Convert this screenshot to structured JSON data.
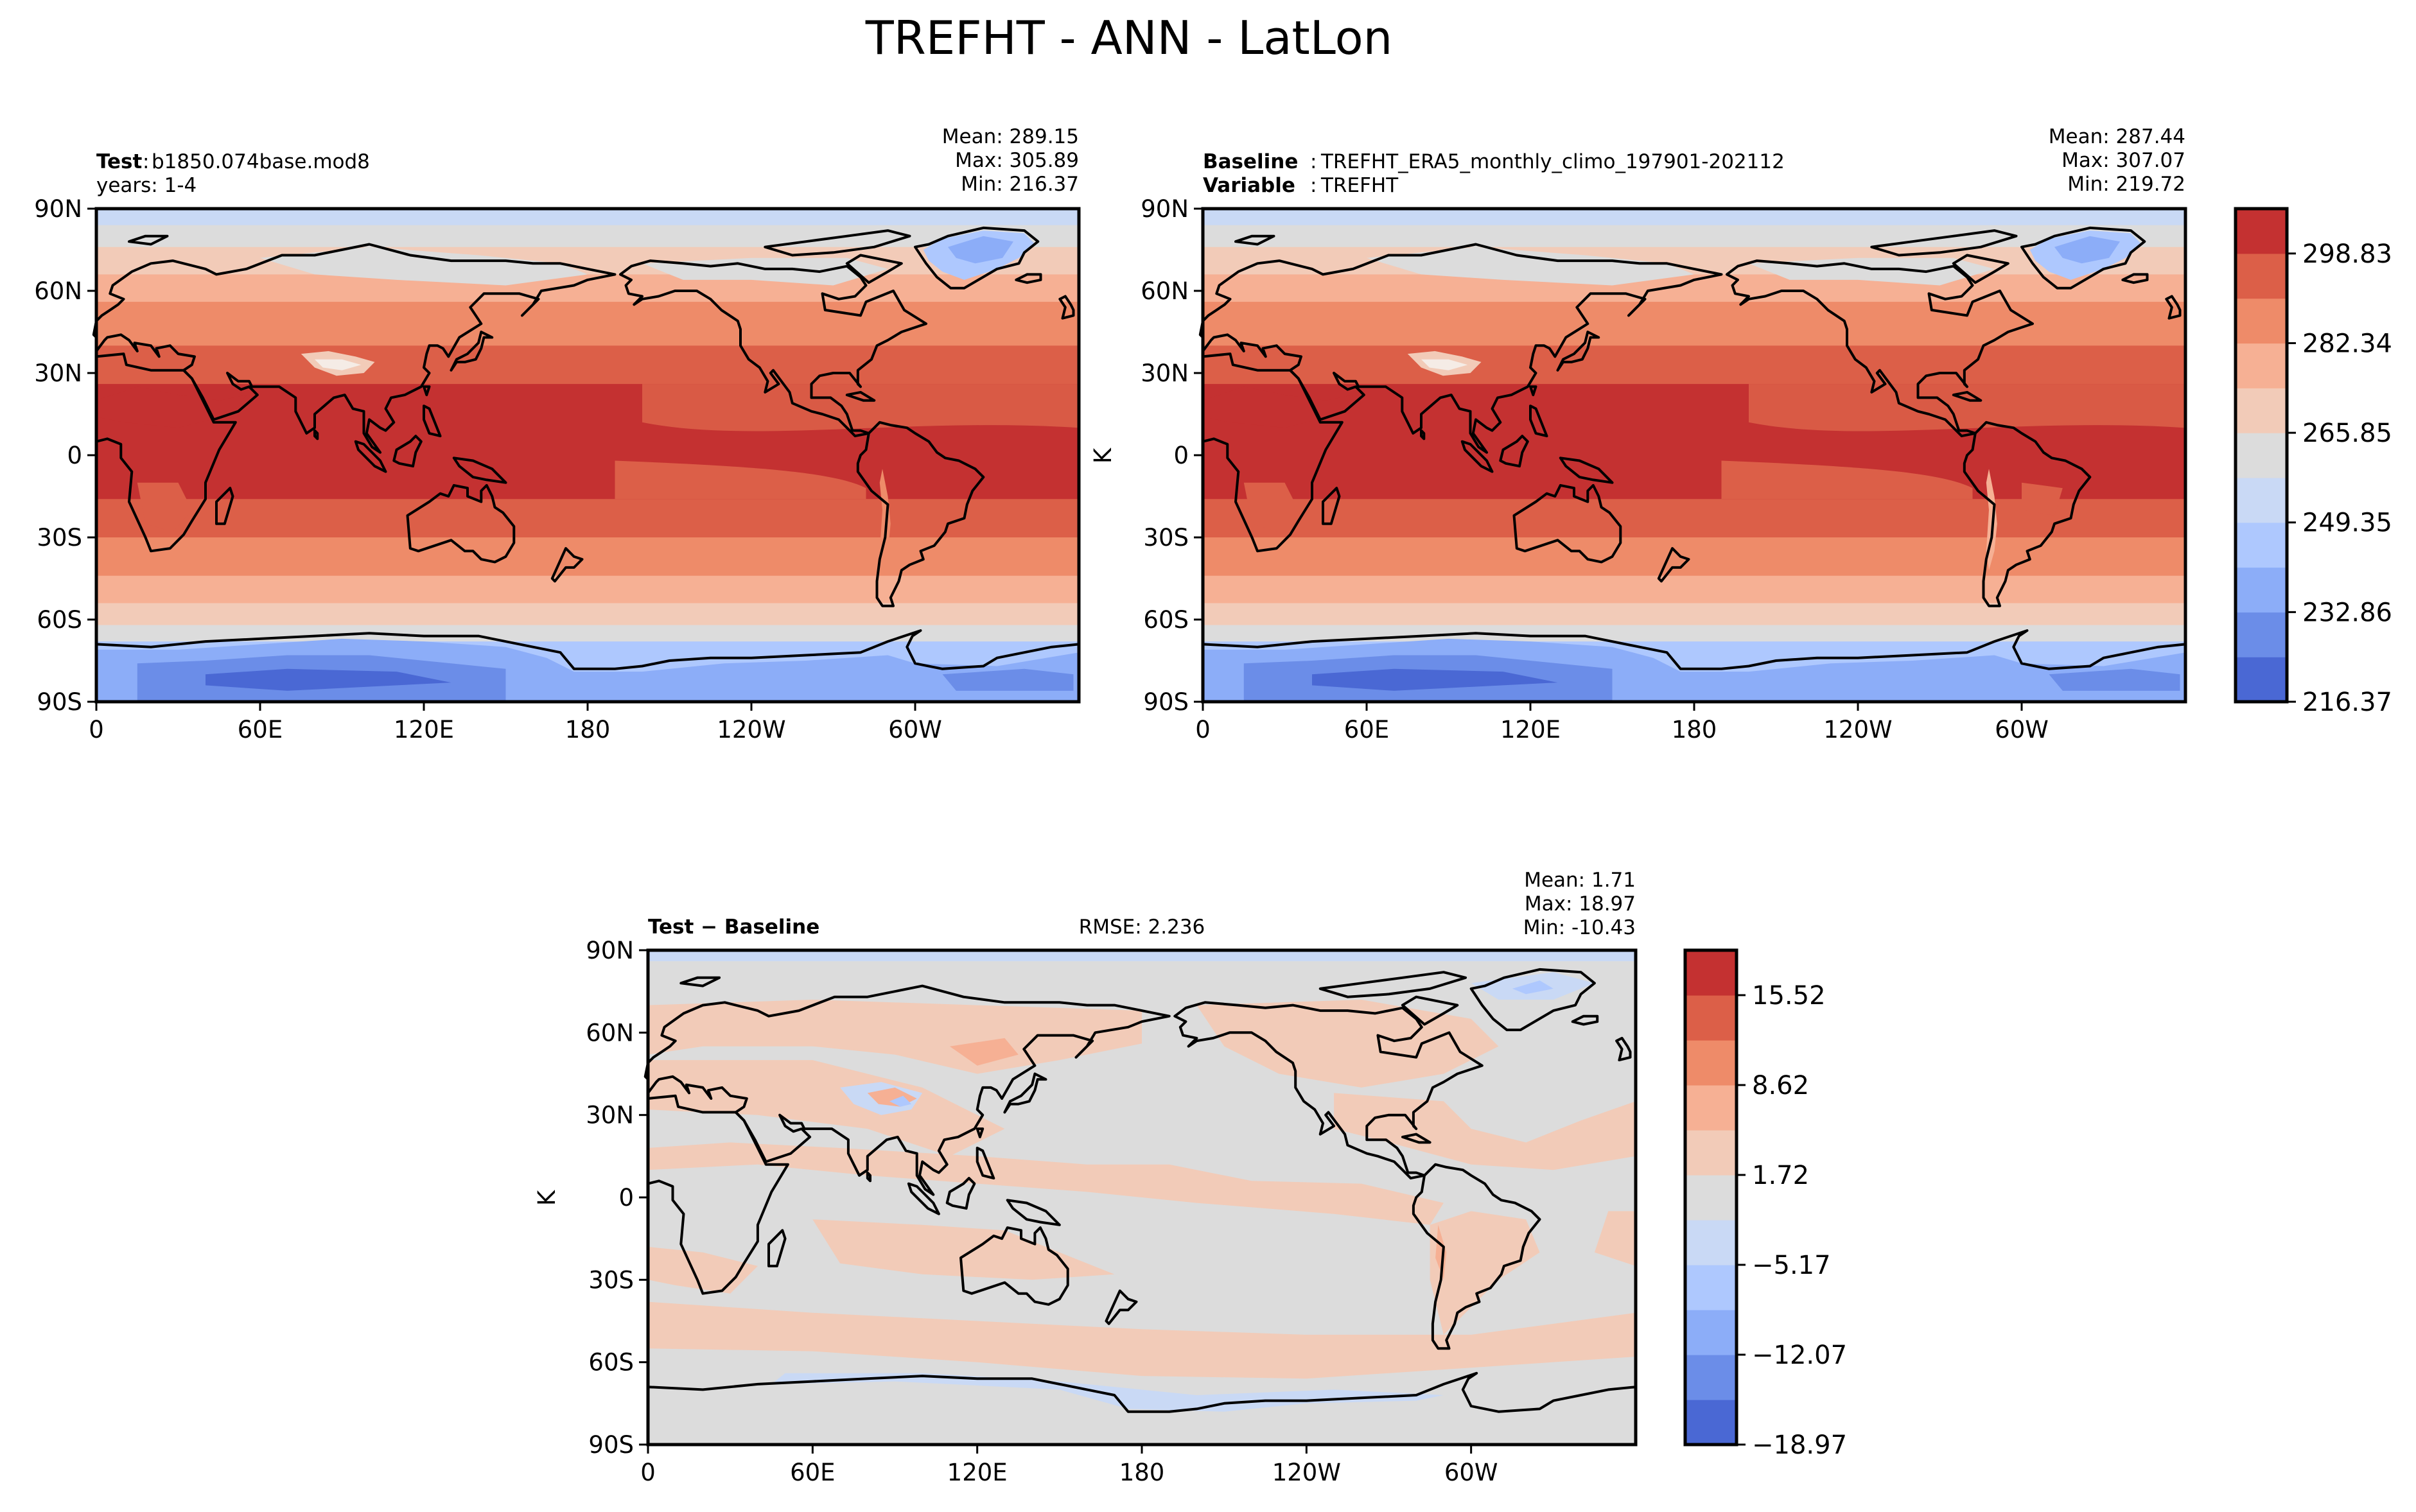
{
  "figure_title": "TREFHT - ANN - LatLon",
  "colors": {
    "main_levels": [
      "#4a68d4",
      "#6b8de8",
      "#8cadf8",
      "#aec8fe",
      "#c9d9f5",
      "#dcdcdc",
      "#f2cbb8",
      "#f6b094",
      "#ee8b69",
      "#dc5f48",
      "#c43131"
    ],
    "diff_levels": [
      "#4a68d4",
      "#6b8de8",
      "#8cadf8",
      "#aec8fe",
      "#c9d9f5",
      "#dcdcdc",
      "#f2cbb8",
      "#f6b094",
      "#ee8b69",
      "#dc5f48",
      "#c43131"
    ]
  },
  "chart_data": [
    {
      "type": "heatmap",
      "panel": "test",
      "label_bold": "Test",
      "label_text": "b1850.074base.mod8",
      "label_line2": "years: 1-4",
      "stats": [
        "Mean: 289.15",
        "Max: 305.89",
        "Min: 216.37"
      ],
      "mean": 289.15,
      "max": 305.89,
      "min": 216.37,
      "x_ticks": [
        "0",
        "60E",
        "120E",
        "180",
        "120W",
        "60W"
      ],
      "y_ticks": [
        "90N",
        "60N",
        "30N",
        "0",
        "30S",
        "60S",
        "90S"
      ],
      "xlim": [
        0,
        360
      ],
      "ylim": [
        -90,
        90
      ]
    },
    {
      "type": "heatmap",
      "panel": "baseline",
      "label_bold": "Baseline",
      "label_text": "TREFHT_ERA5_monthly_climo_197901-202112",
      "label_bold2": "Variable",
      "label_text2": "TREFHT",
      "stats": [
        "Mean: 287.44",
        "Max: 307.07",
        "Min: 219.72"
      ],
      "mean": 287.44,
      "max": 307.07,
      "min": 219.72,
      "ylabel": "K",
      "x_ticks": [
        "0",
        "60E",
        "120E",
        "180",
        "120W",
        "60W"
      ],
      "y_ticks": [
        "90N",
        "60N",
        "30N",
        "0",
        "30S",
        "60S",
        "90S"
      ],
      "xlim": [
        0,
        360
      ],
      "ylim": [
        -90,
        90
      ],
      "colorbar_ticks": [
        "298.83",
        "282.34",
        "265.85",
        "249.35",
        "232.86",
        "216.37"
      ]
    },
    {
      "type": "heatmap",
      "panel": "difference",
      "label_bold": "Test − Baseline",
      "rmse": "RMSE: 2.236",
      "stats": [
        "Mean:  1.71",
        "Max: 18.97",
        "Min: -10.43"
      ],
      "mean": 1.71,
      "max": 18.97,
      "min": -10.43,
      "ylabel": "K",
      "x_ticks": [
        "0",
        "60E",
        "120E",
        "180",
        "120W",
        "60W"
      ],
      "y_ticks": [
        "90N",
        "60N",
        "30N",
        "0",
        "30S",
        "60S",
        "90S"
      ],
      "xlim": [
        0,
        360
      ],
      "ylim": [
        -90,
        90
      ],
      "colorbar_ticks": [
        "15.52",
        "8.62",
        "1.72",
        "−5.17",
        "−12.07",
        "−18.97"
      ]
    }
  ]
}
